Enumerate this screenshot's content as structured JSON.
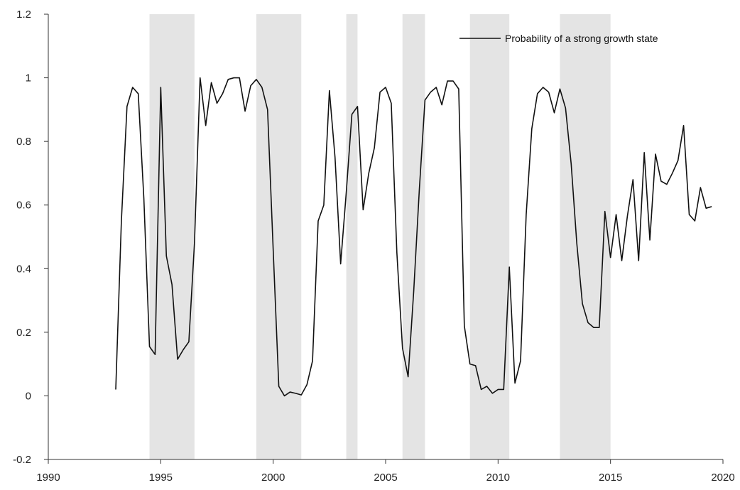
{
  "chart_data": {
    "type": "line",
    "title": "",
    "xlabel": "",
    "ylabel": "",
    "xlim": [
      1990,
      2020
    ],
    "ylim": [
      -0.2,
      1.2
    ],
    "x_ticks": [
      "1990",
      "1995",
      "2000",
      "2005",
      "2010",
      "2015",
      "2020"
    ],
    "y_ticks": [
      "-0.2",
      "0",
      "0.2",
      "0.4",
      "0.6",
      "0.8",
      "1",
      "1.2"
    ],
    "grid": false,
    "legend": {
      "position": "top-right"
    },
    "shaded_periods": [
      [
        1994.5,
        1996.5
      ],
      [
        1999.25,
        2001.25
      ],
      [
        2003.25,
        2003.75
      ],
      [
        2005.75,
        2006.75
      ],
      [
        2008.75,
        2010.5
      ],
      [
        2012.75,
        2015.0
      ]
    ],
    "shade_color": "#e4e4e4",
    "line_color": "#111111",
    "series": [
      {
        "name": "Probability of a strong growth state",
        "x": [
          1993.0,
          1993.25,
          1993.5,
          1993.75,
          1994.0,
          1994.25,
          1994.5,
          1994.75,
          1995.0,
          1995.25,
          1995.5,
          1995.75,
          1996.0,
          1996.25,
          1996.5,
          1996.75,
          1997.0,
          1997.25,
          1997.5,
          1997.75,
          1998.0,
          1998.25,
          1998.5,
          1998.75,
          1999.0,
          1999.25,
          1999.5,
          1999.75,
          2000.0,
          2000.25,
          2000.5,
          2000.75,
          2001.0,
          2001.25,
          2001.5,
          2001.75,
          2002.0,
          2002.25,
          2002.5,
          2002.75,
          2003.0,
          2003.25,
          2003.5,
          2003.75,
          2004.0,
          2004.25,
          2004.5,
          2004.75,
          2005.0,
          2005.25,
          2005.5,
          2005.75,
          2006.0,
          2006.25,
          2006.5,
          2006.75,
          2007.0,
          2007.25,
          2007.5,
          2007.75,
          2008.0,
          2008.25,
          2008.5,
          2008.75,
          2009.0,
          2009.25,
          2009.5,
          2009.75,
          2010.0,
          2010.25,
          2010.5,
          2010.75,
          2011.0,
          2011.25,
          2011.5,
          2011.75,
          2012.0,
          2012.25,
          2012.5,
          2012.75,
          2013.0,
          2013.25,
          2013.5,
          2013.75,
          2014.0,
          2014.25,
          2014.5,
          2014.75,
          2015.0,
          2015.25,
          2015.5,
          2015.75,
          2016.0,
          2016.25,
          2016.5,
          2016.75,
          2017.0,
          2017.25,
          2017.5,
          2017.75,
          2018.0,
          2018.25,
          2018.5,
          2018.75,
          2019.0,
          2019.25,
          2019.5
        ],
        "values": [
          0.02,
          0.55,
          0.91,
          0.97,
          0.95,
          0.62,
          0.155,
          0.13,
          0.97,
          0.44,
          0.35,
          0.115,
          0.145,
          0.17,
          0.48,
          1.0,
          0.85,
          0.985,
          0.92,
          0.95,
          0.995,
          1.0,
          1.0,
          0.895,
          0.975,
          0.995,
          0.97,
          0.9,
          0.46,
          0.03,
          0.0,
          0.012,
          0.008,
          0.003,
          0.035,
          0.11,
          0.55,
          0.6,
          0.96,
          0.75,
          0.415,
          0.64,
          0.885,
          0.91,
          0.585,
          0.7,
          0.78,
          0.955,
          0.97,
          0.92,
          0.45,
          0.15,
          0.06,
          0.33,
          0.65,
          0.93,
          0.955,
          0.97,
          0.915,
          0.99,
          0.99,
          0.965,
          0.22,
          0.1,
          0.095,
          0.02,
          0.03,
          0.008,
          0.02,
          0.02,
          0.405,
          0.04,
          0.11,
          0.57,
          0.84,
          0.95,
          0.97,
          0.955,
          0.89,
          0.965,
          0.905,
          0.73,
          0.48,
          0.29,
          0.23,
          0.215,
          0.215,
          0.58,
          0.435,
          0.57,
          0.425,
          0.565,
          0.68,
          0.425,
          0.765,
          0.49,
          0.76,
          0.675,
          0.665,
          0.7,
          0.74,
          0.85,
          0.57,
          0.55,
          0.655,
          0.59,
          0.595
        ]
      }
    ]
  }
}
